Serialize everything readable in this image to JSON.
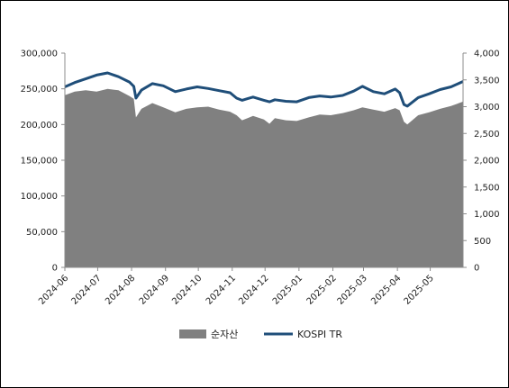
{
  "chart_data": {
    "type": "area",
    "colors": {
      "area": "#808080",
      "line": "#1f4e79"
    },
    "legend_position": "bottom",
    "grid": false,
    "x_ticks": [
      "2024-06",
      "2024-07",
      "2024-08",
      "2024-09",
      "2024-10",
      "2024-11",
      "2024-12",
      "2025-01",
      "2025-02",
      "2025-03",
      "2025-04",
      "2025-05"
    ],
    "y_left": {
      "ticks": [
        "0",
        "50,000",
        "100,000",
        "150,000",
        "200,000",
        "250,000",
        "300,000"
      ],
      "ylim": [
        0,
        300000
      ]
    },
    "y_right": {
      "ticks": [
        "0",
        "500",
        "1,000",
        "1,500",
        "2,000",
        "2,500",
        "3,000",
        "3,500",
        "4,000"
      ],
      "ylim": [
        0,
        4000
      ]
    },
    "x": [
      "2024-06-01",
      "2024-06-10",
      "2024-06-20",
      "2024-06-30",
      "2024-07-10",
      "2024-07-20",
      "2024-07-30",
      "2024-08-03",
      "2024-08-05",
      "2024-08-10",
      "2024-08-20",
      "2024-08-30",
      "2024-09-10",
      "2024-09-20",
      "2024-09-30",
      "2024-10-10",
      "2024-10-20",
      "2024-10-30",
      "2024-11-05",
      "2024-11-10",
      "2024-11-15",
      "2024-11-20",
      "2024-11-30",
      "2024-12-05",
      "2024-12-10",
      "2024-12-20",
      "2024-12-30",
      "2025-01-10",
      "2025-01-20",
      "2025-01-30",
      "2025-02-10",
      "2025-02-20",
      "2025-02-28",
      "2025-03-10",
      "2025-03-20",
      "2025-03-30",
      "2025-04-03",
      "2025-04-07",
      "2025-04-10",
      "2025-04-20",
      "2025-04-30",
      "2025-05-10",
      "2025-05-20",
      "2025-05-31"
    ],
    "series": [
      {
        "name": "순자산",
        "axis": "left",
        "kind": "area",
        "values": [
          241000,
          246000,
          248000,
          246000,
          250000,
          248000,
          240000,
          236000,
          210000,
          222000,
          230000,
          224000,
          217000,
          222000,
          224000,
          225000,
          221000,
          218000,
          213000,
          206000,
          209000,
          212000,
          207000,
          201000,
          209000,
          206000,
          205000,
          210000,
          214000,
          213000,
          216000,
          220000,
          224000,
          221000,
          218000,
          223000,
          220000,
          204000,
          200000,
          213000,
          217000,
          222000,
          226000,
          232000
        ]
      },
      {
        "name": "KOSPI TR",
        "axis": "right",
        "kind": "line",
        "values": [
          3370,
          3450,
          3520,
          3590,
          3630,
          3560,
          3460,
          3380,
          3160,
          3310,
          3430,
          3390,
          3280,
          3330,
          3370,
          3340,
          3300,
          3260,
          3160,
          3120,
          3150,
          3180,
          3120,
          3090,
          3130,
          3100,
          3090,
          3170,
          3200,
          3180,
          3210,
          3290,
          3380,
          3280,
          3240,
          3330,
          3260,
          3040,
          3010,
          3170,
          3240,
          3320,
          3370,
          3470
        ]
      }
    ],
    "legend": [
      "순자산",
      "KOSPI TR"
    ]
  }
}
